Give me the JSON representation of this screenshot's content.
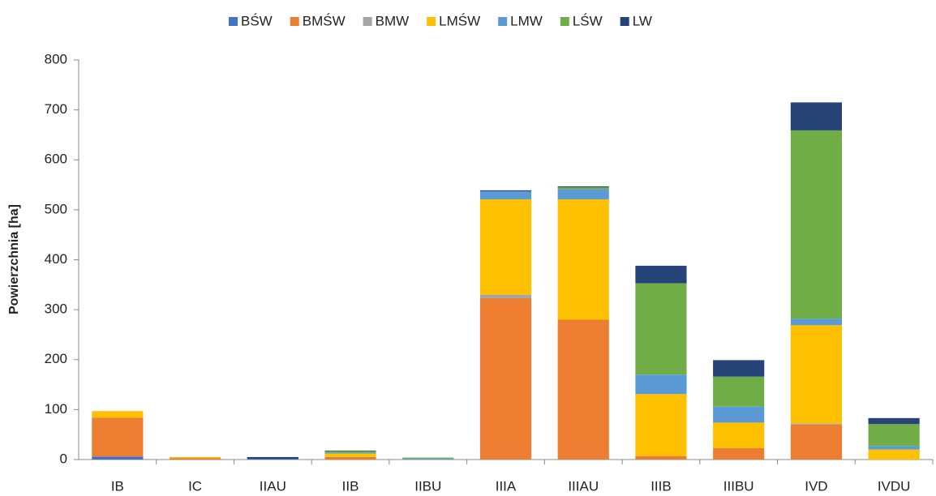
{
  "chart_data": {
    "type": "stacked_bar",
    "y_label": "Powierzchnia [ha]",
    "categories": [
      "IB",
      "IC",
      "IIAU",
      "IIB",
      "IIBU",
      "IIIA",
      "IIIAU",
      "IIIB",
      "IIIBU",
      "IVD",
      "IVDU"
    ],
    "series": [
      {
        "name": "BŚW",
        "color": "#4472c4",
        "values": [
          6,
          0,
          1,
          0,
          0,
          0,
          0,
          0,
          0,
          0,
          0
        ]
      },
      {
        "name": "BMŚW",
        "color": "#ed7d31",
        "values": [
          78,
          3,
          0,
          5,
          0,
          323,
          280,
          7,
          23,
          70,
          0
        ]
      },
      {
        "name": "BMW",
        "color": "#a5a5a5",
        "values": [
          0,
          0,
          0,
          0,
          0,
          7,
          0,
          0,
          0,
          2,
          0
        ]
      },
      {
        "name": "LMŚW",
        "color": "#ffc000",
        "values": [
          13,
          2,
          0,
          7,
          0,
          191,
          241,
          124,
          51,
          197,
          20
        ]
      },
      {
        "name": "LMW",
        "color": "#5b9bd5",
        "values": [
          0,
          0,
          0,
          2,
          2,
          16,
          20,
          39,
          32,
          13,
          7
        ]
      },
      {
        "name": "LŚW",
        "color": "#70ad47",
        "values": [
          0,
          0,
          0,
          3,
          2,
          0,
          4,
          183,
          60,
          377,
          44
        ]
      },
      {
        "name": "LW",
        "color": "#264478",
        "values": [
          0,
          0,
          4,
          1,
          0,
          2,
          2,
          35,
          33,
          56,
          12
        ]
      }
    ],
    "ylim": [
      0,
      800
    ],
    "yticks": [
      0,
      100,
      200,
      300,
      400,
      500,
      600,
      700,
      800
    ],
    "grid": false,
    "legend": "top"
  }
}
